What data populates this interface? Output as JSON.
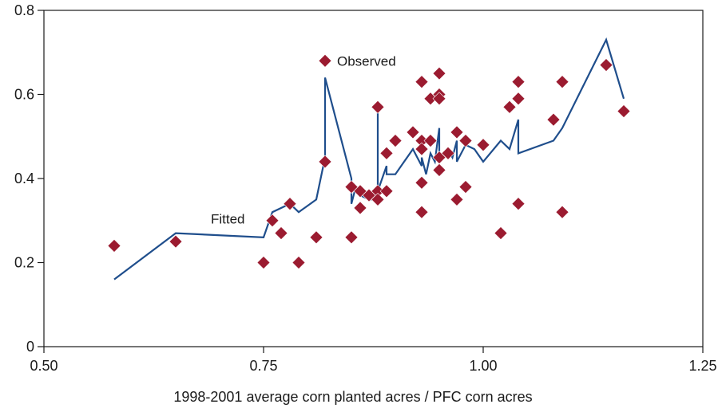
{
  "chart_data": {
    "type": "scatter",
    "xlabel": "1998-2001 average corn planted acres / PFC corn acres",
    "ylabel": "",
    "xlim": [
      0.5,
      1.25
    ],
    "ylim": [
      0,
      0.8
    ],
    "x_ticks": [
      0.5,
      0.75,
      1.0,
      1.25
    ],
    "x_tick_labels": [
      "0.50",
      "0.75",
      "1.00",
      "1.25"
    ],
    "y_ticks": [
      0,
      0.2,
      0.4,
      0.6,
      0.8
    ],
    "y_tick_labels": [
      "0",
      "0.2",
      "0.4",
      "0.6",
      "0.8"
    ],
    "grid": false,
    "annotations": [
      {
        "text": "Observed",
        "series": "observed"
      },
      {
        "text": "Fitted",
        "series": "fitted"
      }
    ],
    "series": [
      {
        "id": "observed",
        "kind": "scatter",
        "color": "#9b1b30",
        "marker": "diamond",
        "points": [
          [
            0.58,
            0.24
          ],
          [
            0.65,
            0.25
          ],
          [
            0.75,
            0.2
          ],
          [
            0.76,
            0.3
          ],
          [
            0.77,
            0.27
          ],
          [
            0.78,
            0.34
          ],
          [
            0.79,
            0.2
          ],
          [
            0.81,
            0.26
          ],
          [
            0.82,
            0.44
          ],
          [
            0.82,
            0.68
          ],
          [
            0.85,
            0.26
          ],
          [
            0.85,
            0.38
          ],
          [
            0.86,
            0.37
          ],
          [
            0.86,
            0.33
          ],
          [
            0.87,
            0.36
          ],
          [
            0.88,
            0.57
          ],
          [
            0.88,
            0.37
          ],
          [
            0.88,
            0.35
          ],
          [
            0.89,
            0.46
          ],
          [
            0.89,
            0.37
          ],
          [
            0.9,
            0.49
          ],
          [
            0.92,
            0.51
          ],
          [
            0.93,
            0.63
          ],
          [
            0.93,
            0.49
          ],
          [
            0.93,
            0.47
          ],
          [
            0.93,
            0.39
          ],
          [
            0.93,
            0.32
          ],
          [
            0.94,
            0.59
          ],
          [
            0.94,
            0.49
          ],
          [
            0.95,
            0.65
          ],
          [
            0.95,
            0.6
          ],
          [
            0.95,
            0.59
          ],
          [
            0.95,
            0.45
          ],
          [
            0.95,
            0.42
          ],
          [
            0.96,
            0.46
          ],
          [
            0.97,
            0.51
          ],
          [
            0.97,
            0.35
          ],
          [
            0.98,
            0.49
          ],
          [
            0.98,
            0.38
          ],
          [
            1.0,
            0.48
          ],
          [
            1.02,
            0.27
          ],
          [
            1.03,
            0.57
          ],
          [
            1.04,
            0.63
          ],
          [
            1.04,
            0.59
          ],
          [
            1.04,
            0.34
          ],
          [
            1.08,
            0.54
          ],
          [
            1.09,
            0.63
          ],
          [
            1.09,
            0.32
          ],
          [
            1.14,
            0.67
          ],
          [
            1.16,
            0.56
          ]
        ]
      },
      {
        "id": "fitted",
        "kind": "line",
        "color": "#1f4e8c",
        "points": [
          [
            0.58,
            0.16
          ],
          [
            0.65,
            0.27
          ],
          [
            0.75,
            0.26
          ],
          [
            0.76,
            0.32
          ],
          [
            0.78,
            0.34
          ],
          [
            0.79,
            0.32
          ],
          [
            0.81,
            0.35
          ],
          [
            0.82,
            0.45
          ],
          [
            0.82,
            0.64
          ],
          [
            0.85,
            0.4
          ],
          [
            0.85,
            0.34
          ],
          [
            0.855,
            0.38
          ],
          [
            0.86,
            0.36
          ],
          [
            0.87,
            0.35
          ],
          [
            0.88,
            0.35
          ],
          [
            0.88,
            0.56
          ],
          [
            0.88,
            0.37
          ],
          [
            0.885,
            0.4
          ],
          [
            0.89,
            0.43
          ],
          [
            0.89,
            0.41
          ],
          [
            0.9,
            0.41
          ],
          [
            0.91,
            0.44
          ],
          [
            0.92,
            0.47
          ],
          [
            0.93,
            0.43
          ],
          [
            0.93,
            0.45
          ],
          [
            0.935,
            0.41
          ],
          [
            0.94,
            0.46
          ],
          [
            0.945,
            0.44
          ],
          [
            0.95,
            0.52
          ],
          [
            0.95,
            0.45
          ],
          [
            0.96,
            0.47
          ],
          [
            0.965,
            0.45
          ],
          [
            0.97,
            0.49
          ],
          [
            0.97,
            0.44
          ],
          [
            0.98,
            0.48
          ],
          [
            0.99,
            0.47
          ],
          [
            1.0,
            0.44
          ],
          [
            1.02,
            0.49
          ],
          [
            1.03,
            0.47
          ],
          [
            1.04,
            0.54
          ],
          [
            1.04,
            0.46
          ],
          [
            1.08,
            0.49
          ],
          [
            1.09,
            0.52
          ],
          [
            1.14,
            0.73
          ],
          [
            1.16,
            0.59
          ]
        ]
      }
    ]
  }
}
